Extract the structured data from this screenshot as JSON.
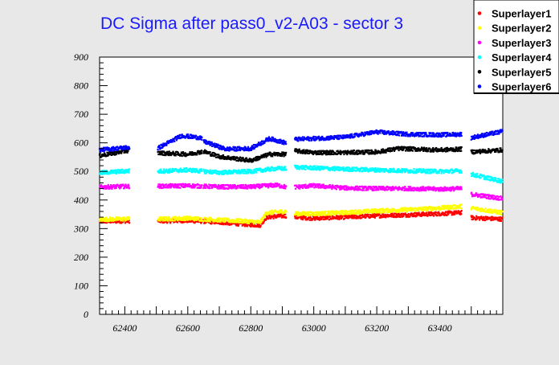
{
  "chart_data": {
    "type": "scatter",
    "title": "DC Sigma after pass0_v2-A03 - sector 3",
    "xlabel": "",
    "ylabel": "",
    "xlim": [
      62320,
      63600
    ],
    "ylim": [
      0,
      900
    ],
    "x_ticks": [
      62400,
      62600,
      62800,
      63000,
      63200,
      63400
    ],
    "y_ticks": [
      0,
      100,
      200,
      300,
      400,
      500,
      600,
      700,
      800,
      900
    ],
    "grid": false,
    "legend_position": "top-right",
    "run_segments": [
      [
        62320,
        62415
      ],
      [
        62505,
        62645
      ],
      [
        62650,
        62912
      ],
      [
        62940,
        63470
      ],
      [
        63500,
        63600
      ]
    ],
    "series": [
      {
        "name": "Superlayer1",
        "color": "#ff0000",
        "profile": [
          [
            62320,
            325
          ],
          [
            62420,
            327
          ],
          [
            62500,
            326
          ],
          [
            62600,
            328
          ],
          [
            62700,
            322
          ],
          [
            62780,
            315
          ],
          [
            62830,
            312
          ],
          [
            62850,
            340
          ],
          [
            62910,
            345
          ],
          [
            62940,
            340
          ],
          [
            63000,
            336
          ],
          [
            63100,
            340
          ],
          [
            63200,
            345
          ],
          [
            63300,
            348
          ],
          [
            63400,
            352
          ],
          [
            63470,
            356
          ],
          [
            63500,
            338
          ],
          [
            63600,
            333
          ]
        ]
      },
      {
        "name": "Superlayer2",
        "color": "#ffff00",
        "profile": [
          [
            62320,
            332
          ],
          [
            62420,
            334
          ],
          [
            62500,
            333
          ],
          [
            62600,
            336
          ],
          [
            62700,
            330
          ],
          [
            62780,
            326
          ],
          [
            62830,
            322
          ],
          [
            62850,
            355
          ],
          [
            62910,
            360
          ],
          [
            62940,
            352
          ],
          [
            63000,
            352
          ],
          [
            63100,
            356
          ],
          [
            63200,
            362
          ],
          [
            63300,
            366
          ],
          [
            63400,
            372
          ],
          [
            63470,
            378
          ],
          [
            63500,
            372
          ],
          [
            63600,
            355
          ]
        ]
      },
      {
        "name": "Superlayer3",
        "color": "#ff00ff",
        "profile": [
          [
            62320,
            445
          ],
          [
            62420,
            448
          ],
          [
            62500,
            448
          ],
          [
            62600,
            450
          ],
          [
            62700,
            446
          ],
          [
            62800,
            446
          ],
          [
            62880,
            452
          ],
          [
            62910,
            446
          ],
          [
            62940,
            445
          ],
          [
            63000,
            450
          ],
          [
            63100,
            442
          ],
          [
            63200,
            440
          ],
          [
            63300,
            440
          ],
          [
            63400,
            438
          ],
          [
            63470,
            440
          ],
          [
            63500,
            420
          ],
          [
            63600,
            405
          ]
        ]
      },
      {
        "name": "Superlayer4",
        "color": "#00ffff",
        "profile": [
          [
            62320,
            495
          ],
          [
            62420,
            502
          ],
          [
            62500,
            500
          ],
          [
            62600,
            505
          ],
          [
            62700,
            496
          ],
          [
            62800,
            500
          ],
          [
            62880,
            510
          ],
          [
            62910,
            510
          ],
          [
            62940,
            515
          ],
          [
            63000,
            512
          ],
          [
            63100,
            508
          ],
          [
            63200,
            505
          ],
          [
            63300,
            502
          ],
          [
            63400,
            500
          ],
          [
            63470,
            502
          ],
          [
            63500,
            490
          ],
          [
            63600,
            465
          ]
        ]
      },
      {
        "name": "Superlayer5",
        "color": "#000000",
        "profile": [
          [
            62320,
            555
          ],
          [
            62420,
            575
          ],
          [
            62500,
            565
          ],
          [
            62600,
            560
          ],
          [
            62650,
            570
          ],
          [
            62700,
            552
          ],
          [
            62800,
            538
          ],
          [
            62860,
            560
          ],
          [
            62910,
            560
          ],
          [
            62940,
            572
          ],
          [
            63000,
            566
          ],
          [
            63100,
            566
          ],
          [
            63200,
            568
          ],
          [
            63270,
            580
          ],
          [
            63400,
            575
          ],
          [
            63470,
            578
          ],
          [
            63500,
            568
          ],
          [
            63600,
            575
          ]
        ]
      },
      {
        "name": "Superlayer6",
        "color": "#0000ff",
        "profile": [
          [
            62320,
            575
          ],
          [
            62420,
            585
          ],
          [
            62500,
            578
          ],
          [
            62580,
            625
          ],
          [
            62640,
            618
          ],
          [
            62650,
            605
          ],
          [
            62720,
            578
          ],
          [
            62800,
            580
          ],
          [
            62860,
            615
          ],
          [
            62910,
            600
          ],
          [
            62940,
            612
          ],
          [
            63000,
            615
          ],
          [
            63100,
            620
          ],
          [
            63200,
            638
          ],
          [
            63300,
            630
          ],
          [
            63400,
            628
          ],
          [
            63470,
            630
          ],
          [
            63500,
            618
          ],
          [
            63600,
            640
          ]
        ]
      }
    ]
  }
}
